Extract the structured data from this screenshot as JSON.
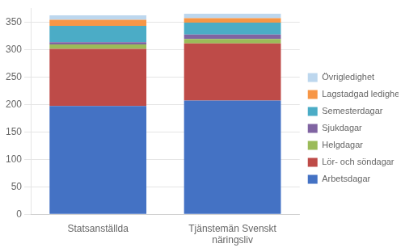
{
  "chart_data": {
    "type": "bar",
    "stacked": true,
    "categories": [
      "Statsanställda",
      "Tjänstemän Svenskt\nnäringsliv"
    ],
    "series": [
      {
        "name": "Arbetsdagar",
        "values": [
          197,
          207
        ],
        "color": "#4472C4"
      },
      {
        "name": "Lör- och söndagar",
        "values": [
          104,
          104
        ],
        "color": "#BE4B48"
      },
      {
        "name": "Helgdagar",
        "values": [
          8,
          8
        ],
        "color": "#9BBB59"
      },
      {
        "name": "Sjukdagar",
        "values": [
          4,
          8
        ],
        "color": "#8064A2"
      },
      {
        "name": "Semesterdagar",
        "values": [
          30,
          22
        ],
        "color": "#4BACC6"
      },
      {
        "name": "Lagstadgad ledighet",
        "values": [
          11,
          8
        ],
        "color": "#F79646"
      },
      {
        "name": "Övrigledighet",
        "values": [
          8,
          8
        ],
        "color": "#BDD7EE"
      }
    ],
    "ylim": [
      0,
      375
    ],
    "yticks": [
      0,
      50,
      100,
      150,
      200,
      250,
      300,
      350
    ],
    "grid": true,
    "legend": "right"
  }
}
